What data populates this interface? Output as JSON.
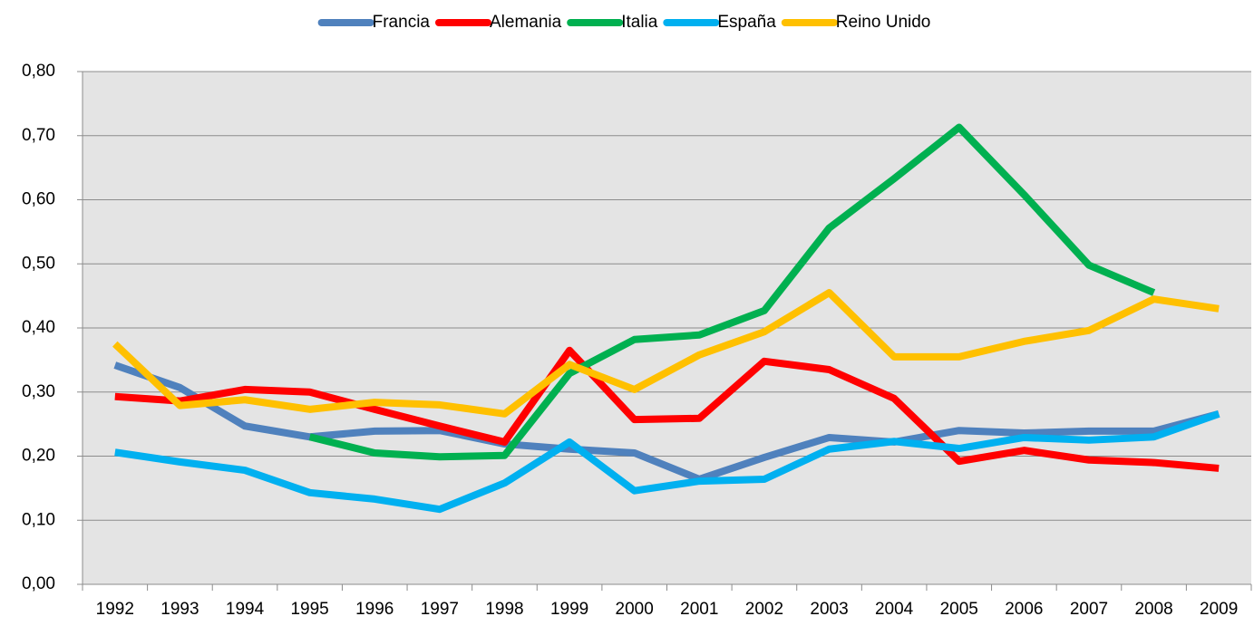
{
  "chart_data": {
    "type": "line",
    "categories": [
      "1992",
      "1993",
      "1994",
      "1995",
      "1996",
      "1997",
      "1998",
      "1999",
      "2000",
      "2001",
      "2002",
      "2003",
      "2004",
      "2005",
      "2006",
      "2007",
      "2008",
      "2009"
    ],
    "series": [
      {
        "name": "Francia",
        "color": "#4f81bd",
        "values": [
          0.342,
          0.307,
          0.247,
          0.23,
          0.239,
          0.24,
          0.219,
          0.211,
          0.205,
          0.164,
          0.198,
          0.229,
          0.222,
          0.24,
          0.236,
          0.239,
          0.239,
          0.266
        ]
      },
      {
        "name": "Alemania",
        "color": "#ff0000",
        "values": [
          0.293,
          0.286,
          0.304,
          0.3,
          0.273,
          0.247,
          0.222,
          0.365,
          0.257,
          0.259,
          0.348,
          0.335,
          0.29,
          0.192,
          0.209,
          0.194,
          0.19,
          0.181
        ]
      },
      {
        "name": "Italia",
        "color": "#00b050",
        "values": [
          null,
          null,
          null,
          0.23,
          0.205,
          0.199,
          0.201,
          0.329,
          0.382,
          0.389,
          0.427,
          0.556,
          0.633,
          0.713,
          0.608,
          0.498,
          0.455,
          null
        ]
      },
      {
        "name": "España",
        "color": "#00b0f0",
        "values": [
          0.206,
          0.191,
          0.178,
          0.143,
          0.133,
          0.117,
          0.158,
          0.222,
          0.146,
          0.161,
          0.164,
          0.211,
          0.223,
          0.212,
          0.229,
          0.225,
          0.23,
          0.266
        ]
      },
      {
        "name": "Reino Unido",
        "color": "#ffc000",
        "values": [
          0.375,
          0.279,
          0.288,
          0.273,
          0.284,
          0.28,
          0.266,
          0.343,
          0.304,
          0.358,
          0.394,
          0.455,
          0.355,
          0.355,
          0.379,
          0.396,
          0.445,
          0.43
        ]
      }
    ],
    "ylim": [
      0,
      0.8
    ],
    "yticks": [
      {
        "value": 0,
        "label": "0,00"
      },
      {
        "value": 0.1,
        "label": "0,10"
      },
      {
        "value": 0.2,
        "label": "0,20"
      },
      {
        "value": 0.3,
        "label": "0,30"
      },
      {
        "value": 0.4,
        "label": "0,40"
      },
      {
        "value": 0.5,
        "label": "0,50"
      },
      {
        "value": 0.6,
        "label": "0,60"
      },
      {
        "value": 0.7,
        "label": "0,70"
      },
      {
        "value": 0.8,
        "label": "0,80"
      }
    ],
    "grid": true,
    "legend": "top"
  }
}
